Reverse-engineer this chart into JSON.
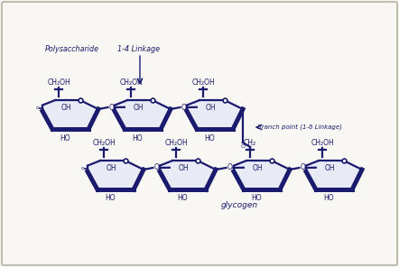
{
  "bg_color": "#f8f7f3",
  "border_color": "#c0bcb0",
  "ring_color": "#1a1a6e",
  "ring_linewidth": 2.0,
  "ring_fill": "#e8eaf5",
  "text_color": "#1a1a6e",
  "fig_width": 4.42,
  "fig_height": 2.96,
  "dpi": 100,
  "polysaccharide_label": "Polysaccharide",
  "linkage14_label": "1-4 Linkage",
  "branch_label": "Branch point (1-6 Linkage)",
  "glycogen_label": "glycogen"
}
